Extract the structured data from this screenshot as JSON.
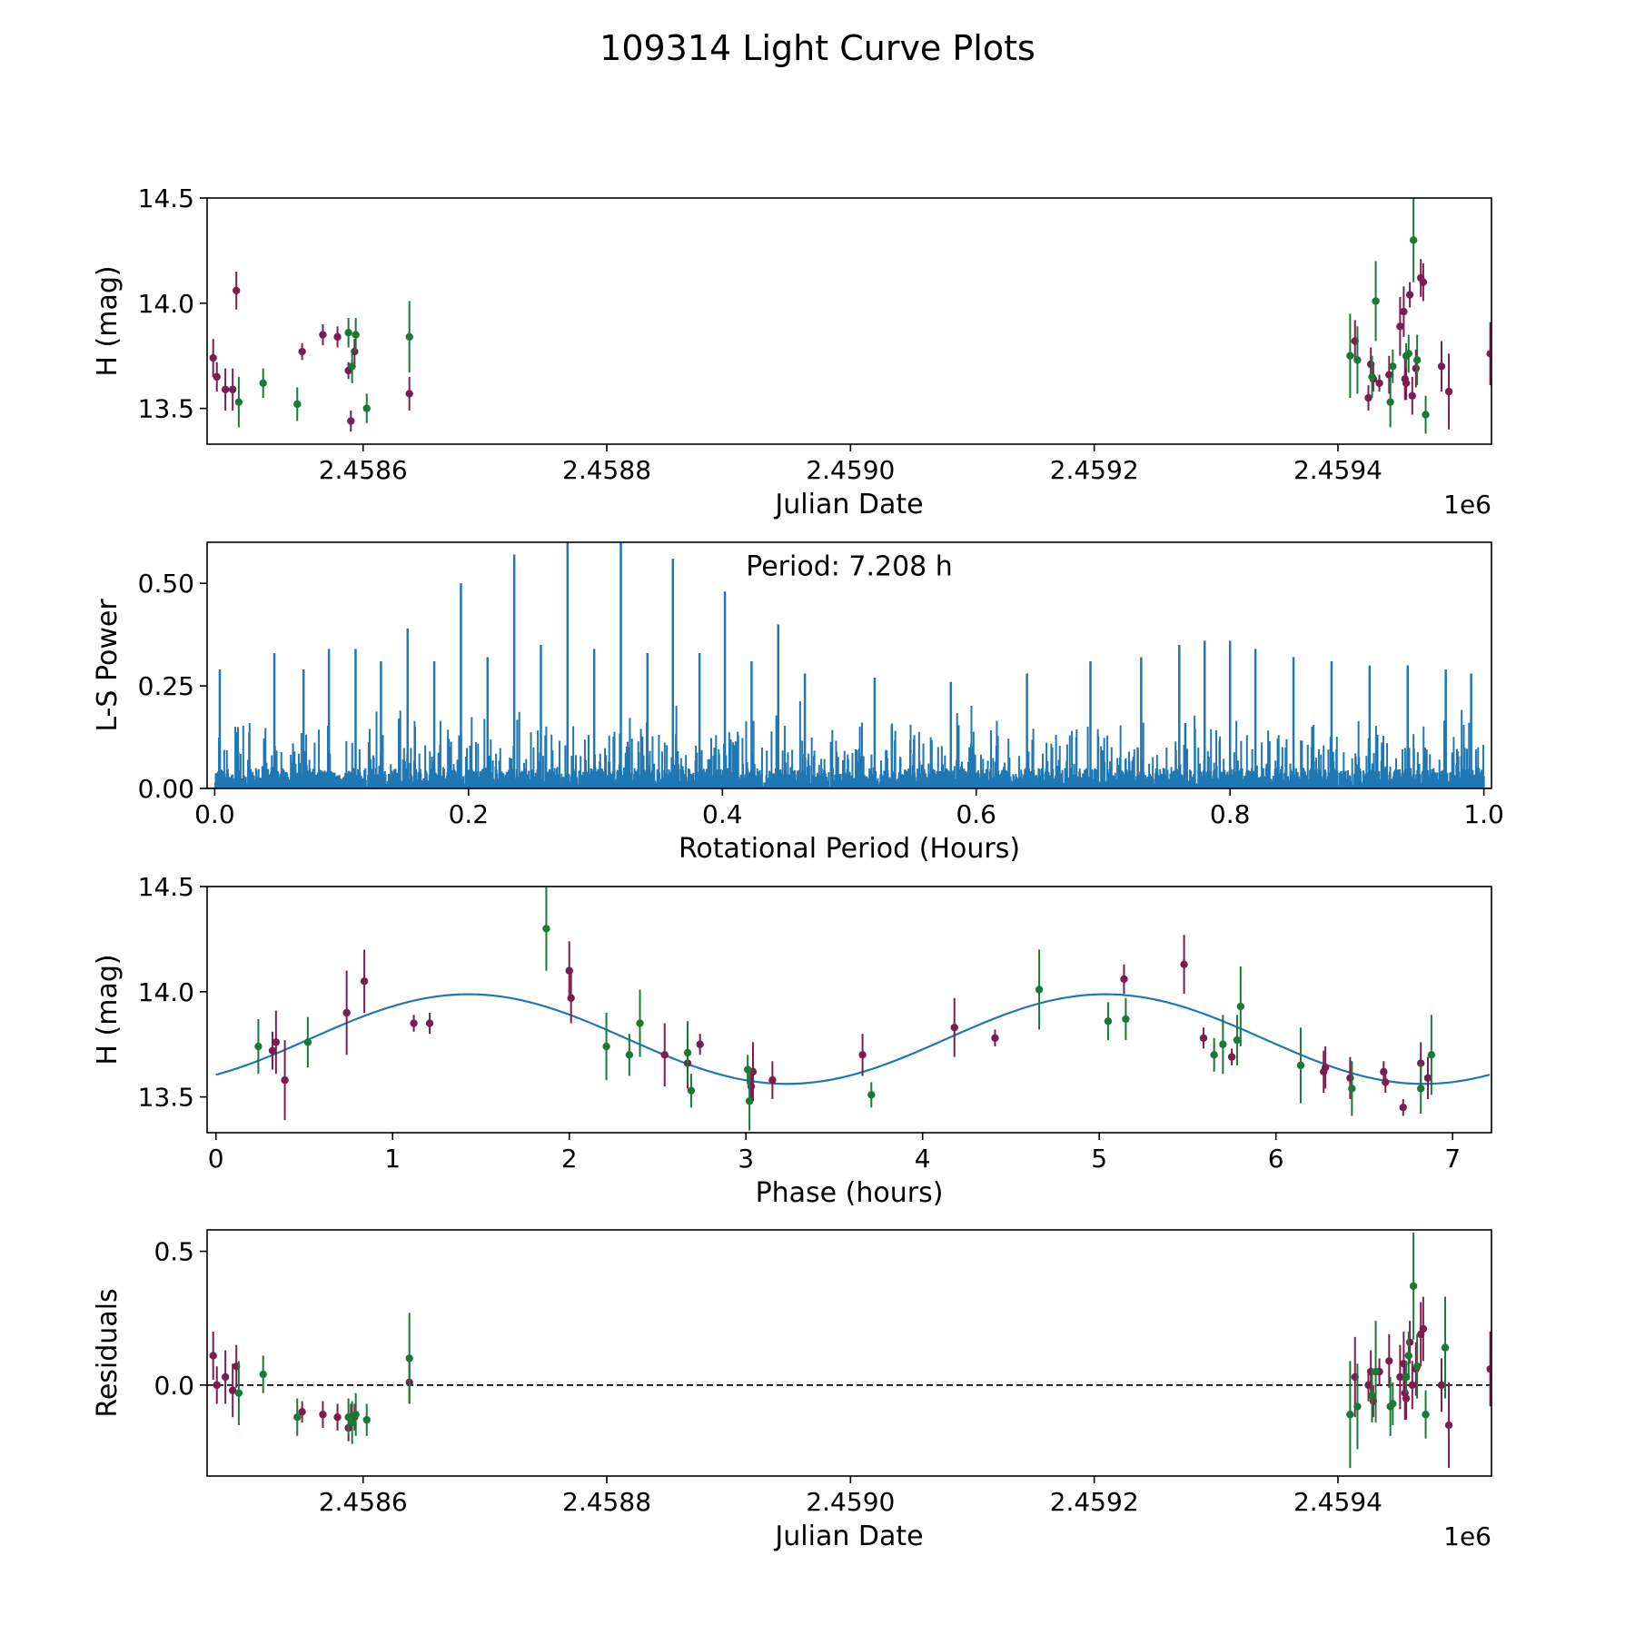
{
  "figure": {
    "title": "109314 Light Curve Plots"
  },
  "colors": {
    "purple": "#7b1e4f",
    "green": "#1a7a35",
    "blue": "#1f77b4",
    "axis": "#000000"
  },
  "chart_data": [
    {
      "type": "scatter",
      "title": "",
      "xlabel": "Julian Date",
      "ylabel": "H (mag)",
      "offset_label": "1e6",
      "xlim": [
        2458472,
        2459526
      ],
      "ylim": [
        13.33,
        14.5
      ],
      "xticks": [
        2458600,
        2458800,
        2459000,
        2459200,
        2459400
      ],
      "xtick_labels": [
        "2.4586",
        "2.4588",
        "2.4590",
        "2.4592",
        "2.4594"
      ],
      "yticks": [
        13.5,
        14.0,
        14.5
      ],
      "ytick_labels": [
        "13.5",
        "14.0",
        "14.5"
      ],
      "series": [
        {
          "name": "purple",
          "color": "purple",
          "points": [
            [
              2458477,
              13.74,
              0.09
            ],
            [
              2458480,
              13.65,
              0.07
            ],
            [
              2458487,
              13.59,
              0.1
            ],
            [
              2458493,
              13.59,
              0.1
            ],
            [
              2458496,
              14.06,
              0.09
            ],
            [
              2458550,
              13.77,
              0.04
            ],
            [
              2458567,
              13.85,
              0.05
            ],
            [
              2458579,
              13.84,
              0.05
            ],
            [
              2458588,
              13.68,
              0.04
            ],
            [
              2458590,
              13.44,
              0.05
            ],
            [
              2458593,
              13.77,
              0.06
            ],
            [
              2458638,
              13.57,
              0.08
            ],
            [
              2459414,
              13.82,
              0.1
            ],
            [
              2459425,
              13.55,
              0.06
            ],
            [
              2459427,
              13.71,
              0.08
            ],
            [
              2459429,
              13.64,
              0.06
            ],
            [
              2459434,
              13.62,
              0.04
            ],
            [
              2459442,
              13.66,
              0.09
            ],
            [
              2459451,
              13.89,
              0.14
            ],
            [
              2459454,
              13.96,
              0.12
            ],
            [
              2459455,
              13.64,
              0.1
            ],
            [
              2459456,
              13.62,
              0.08
            ],
            [
              2459459,
              14.04,
              0.06
            ],
            [
              2459461,
              13.56,
              0.09
            ],
            [
              2459464,
              13.69,
              0.09
            ],
            [
              2459468,
              14.12,
              0.09
            ],
            [
              2459470,
              14.1,
              0.09
            ],
            [
              2459485,
              13.7,
              0.12
            ],
            [
              2459491,
              13.58,
              0.18
            ],
            [
              2459525,
              13.76,
              0.15
            ]
          ]
        },
        {
          "name": "green",
          "color": "green",
          "points": [
            [
              2458498,
              13.53,
              0.12
            ],
            [
              2458518,
              13.62,
              0.07
            ],
            [
              2458546,
              13.52,
              0.08
            ],
            [
              2458588,
              13.86,
              0.07
            ],
            [
              2458591,
              13.7,
              0.08
            ],
            [
              2458594,
              13.85,
              0.08
            ],
            [
              2458603,
              13.5,
              0.07
            ],
            [
              2458638,
              13.84,
              0.17
            ],
            [
              2459410,
              13.75,
              0.2
            ],
            [
              2459416,
              13.73,
              0.16
            ],
            [
              2459428,
              13.65,
              0.1
            ],
            [
              2459431,
              14.01,
              0.19
            ],
            [
              2459443,
              13.53,
              0.12
            ],
            [
              2459445,
              13.7,
              0.08
            ],
            [
              2459456,
              13.75,
              0.06
            ],
            [
              2459458,
              13.76,
              0.09
            ],
            [
              2459462,
              14.3,
              0.2
            ],
            [
              2459465,
              13.73,
              0.12
            ],
            [
              2459472,
              13.47,
              0.09
            ]
          ]
        }
      ]
    },
    {
      "type": "line",
      "title": "",
      "xlabel": "Rotational Period (Hours)",
      "ylabel": "L-S Power",
      "annotation": "Period: 7.208 h",
      "xlim": [
        -0.006,
        1.006
      ],
      "ylim": [
        0.0,
        0.6
      ],
      "xticks": [
        0.0,
        0.2,
        0.4,
        0.6,
        0.8,
        1.0
      ],
      "xtick_labels": [
        "0.0",
        "0.2",
        "0.4",
        "0.6",
        "0.8",
        "1.0"
      ],
      "yticks": [
        0.0,
        0.25,
        0.5
      ],
      "ytick_labels": [
        "0.00",
        "0.25",
        "0.50"
      ],
      "color": "blue",
      "peaks": [
        [
          0.004,
          0.29
        ],
        [
          0.047,
          0.33
        ],
        [
          0.07,
          0.29
        ],
        [
          0.09,
          0.34
        ],
        [
          0.111,
          0.34
        ],
        [
          0.131,
          0.31
        ],
        [
          0.152,
          0.39
        ],
        [
          0.173,
          0.31
        ],
        [
          0.194,
          0.5
        ],
        [
          0.215,
          0.32
        ],
        [
          0.236,
          0.57
        ],
        [
          0.257,
          0.35
        ],
        [
          0.278,
          0.6
        ],
        [
          0.299,
          0.34
        ],
        [
          0.32,
          0.6
        ],
        [
          0.341,
          0.33
        ],
        [
          0.361,
          0.56
        ],
        [
          0.382,
          0.33
        ],
        [
          0.402,
          0.48
        ],
        [
          0.423,
          0.31
        ],
        [
          0.444,
          0.4
        ],
        [
          0.465,
          0.28
        ],
        [
          0.52,
          0.27
        ],
        [
          0.58,
          0.26
        ],
        [
          0.64,
          0.28
        ],
        [
          0.69,
          0.31
        ],
        [
          0.73,
          0.32
        ],
        [
          0.76,
          0.35
        ],
        [
          0.78,
          0.36
        ],
        [
          0.8,
          0.36
        ],
        [
          0.82,
          0.34
        ],
        [
          0.85,
          0.32
        ],
        [
          0.88,
          0.31
        ],
        [
          0.91,
          0.3
        ],
        [
          0.94,
          0.3
        ],
        [
          0.97,
          0.29
        ],
        [
          0.99,
          0.28
        ]
      ]
    },
    {
      "type": "scatter",
      "title": "",
      "xlabel": "Phase (hours)",
      "ylabel": "H (mag)",
      "xlim": [
        -0.05,
        7.22
      ],
      "ylim": [
        13.33,
        14.5
      ],
      "xticks": [
        0,
        1,
        2,
        3,
        4,
        5,
        6,
        7
      ],
      "xtick_labels": [
        "0",
        "1",
        "2",
        "3",
        "4",
        "5",
        "6",
        "7"
      ],
      "yticks": [
        13.5,
        14.0,
        14.5
      ],
      "ytick_labels": [
        "13.5",
        "14.0",
        "14.5"
      ],
      "fit": {
        "period_hours": 3.604,
        "mean": 13.775,
        "amplitude": 0.213,
        "peak_phase": 1.43,
        "color": "blue"
      },
      "series": [
        {
          "name": "purple",
          "color": "purple",
          "points": [
            [
              0.32,
              13.72,
              0.09
            ],
            [
              0.34,
              13.76,
              0.15
            ],
            [
              0.39,
              13.58,
              0.19
            ],
            [
              0.74,
              13.9,
              0.2
            ],
            [
              0.84,
              14.05,
              0.15
            ],
            [
              1.12,
              13.85,
              0.04
            ],
            [
              1.21,
              13.85,
              0.05
            ],
            [
              2.0,
              14.1,
              0.14
            ],
            [
              2.01,
              13.97,
              0.12
            ],
            [
              2.54,
              13.7,
              0.15
            ],
            [
              2.67,
              13.66,
              0.12
            ],
            [
              2.74,
              13.75,
              0.05
            ],
            [
              3.03,
              13.55,
              0.08
            ],
            [
              3.04,
              13.62,
              0.14
            ],
            [
              3.15,
              13.58,
              0.09
            ],
            [
              3.66,
              13.7,
              0.1
            ],
            [
              4.18,
              13.83,
              0.14
            ],
            [
              4.41,
              13.78,
              0.04
            ],
            [
              5.14,
              14.06,
              0.07
            ],
            [
              5.48,
              14.13,
              0.14
            ],
            [
              5.59,
              13.78,
              0.05
            ],
            [
              5.75,
              13.69,
              0.04
            ],
            [
              6.27,
              13.62,
              0.1
            ],
            [
              6.28,
              13.64,
              0.1
            ],
            [
              6.42,
              13.59,
              0.1
            ],
            [
              6.61,
              13.62,
              0.05
            ],
            [
              6.62,
              13.57,
              0.05
            ],
            [
              6.72,
              13.45,
              0.04
            ],
            [
              6.82,
              13.66,
              0.1
            ],
            [
              6.86,
              13.59,
              0.1
            ]
          ]
        },
        {
          "name": "green",
          "color": "green",
          "points": [
            [
              0.24,
              13.74,
              0.13
            ],
            [
              0.52,
              13.76,
              0.12
            ],
            [
              1.87,
              14.3,
              0.2
            ],
            [
              2.21,
              13.74,
              0.16
            ],
            [
              2.34,
              13.7,
              0.1
            ],
            [
              2.4,
              13.85,
              0.16
            ],
            [
              2.67,
              13.71,
              0.15
            ],
            [
              2.69,
              13.53,
              0.08
            ],
            [
              3.01,
              13.63,
              0.07
            ],
            [
              3.02,
              13.48,
              0.14
            ],
            [
              3.71,
              13.51,
              0.06
            ],
            [
              4.66,
              14.01,
              0.19
            ],
            [
              5.05,
              13.86,
              0.09
            ],
            [
              5.15,
              13.87,
              0.1
            ],
            [
              5.65,
              13.7,
              0.08
            ],
            [
              5.7,
              13.75,
              0.14
            ],
            [
              5.78,
              13.77,
              0.12
            ],
            [
              5.8,
              13.93,
              0.19
            ],
            [
              6.14,
              13.65,
              0.18
            ],
            [
              6.43,
              13.54,
              0.13
            ],
            [
              6.82,
              13.54,
              0.12
            ],
            [
              6.88,
              13.7,
              0.19
            ]
          ]
        }
      ]
    },
    {
      "type": "scatter",
      "title": "",
      "xlabel": "Julian Date",
      "ylabel": "Residuals",
      "offset_label": "1e6",
      "xlim": [
        2458472,
        2459526
      ],
      "ylim": [
        -0.34,
        0.58
      ],
      "xticks": [
        2458600,
        2458800,
        2459000,
        2459200,
        2459400
      ],
      "xtick_labels": [
        "2.4586",
        "2.4588",
        "2.4590",
        "2.4592",
        "2.4594"
      ],
      "yticks": [
        0.0,
        0.5
      ],
      "ytick_labels": [
        "0.0",
        "0.5"
      ],
      "reference_line": 0.0,
      "series": [
        {
          "name": "purple",
          "color": "purple",
          "points": [
            [
              2458477,
              0.11,
              0.09
            ],
            [
              2458480,
              0.0,
              0.07
            ],
            [
              2458487,
              0.03,
              0.1
            ],
            [
              2458493,
              -0.02,
              0.1
            ],
            [
              2458496,
              0.07,
              0.08
            ],
            [
              2458550,
              -0.1,
              0.04
            ],
            [
              2458567,
              -0.11,
              0.05
            ],
            [
              2458579,
              -0.12,
              0.05
            ],
            [
              2458588,
              -0.16,
              0.05
            ],
            [
              2458590,
              -0.12,
              0.05
            ],
            [
              2458593,
              -0.12,
              0.05
            ],
            [
              2458638,
              0.01,
              0.08
            ],
            [
              2459414,
              0.03,
              0.15
            ],
            [
              2459425,
              0.0,
              0.06
            ],
            [
              2459427,
              0.05,
              0.08
            ],
            [
              2459429,
              -0.06,
              0.06
            ],
            [
              2459434,
              0.05,
              0.05
            ],
            [
              2459442,
              0.09,
              0.1
            ],
            [
              2459451,
              0.03,
              0.12
            ],
            [
              2459454,
              0.08,
              0.12
            ],
            [
              2459455,
              -0.03,
              0.1
            ],
            [
              2459456,
              -0.05,
              0.08
            ],
            [
              2459459,
              0.16,
              0.08
            ],
            [
              2459461,
              0.0,
              0.09
            ],
            [
              2459464,
              0.06,
              0.1
            ],
            [
              2459468,
              0.19,
              0.12
            ],
            [
              2459470,
              0.21,
              0.12
            ],
            [
              2459485,
              0.0,
              0.1
            ],
            [
              2459491,
              -0.15,
              0.16
            ],
            [
              2459525,
              0.06,
              0.14
            ]
          ]
        },
        {
          "name": "green",
          "color": "green",
          "points": [
            [
              2458498,
              -0.03,
              0.12
            ],
            [
              2458518,
              0.04,
              0.07
            ],
            [
              2458546,
              -0.12,
              0.07
            ],
            [
              2458588,
              -0.12,
              0.07
            ],
            [
              2458591,
              -0.14,
              0.08
            ],
            [
              2458594,
              -0.11,
              0.08
            ],
            [
              2458603,
              -0.13,
              0.06
            ],
            [
              2458638,
              0.1,
              0.17
            ],
            [
              2459410,
              -0.11,
              0.2
            ],
            [
              2459416,
              -0.08,
              0.16
            ],
            [
              2459428,
              -0.04,
              0.1
            ],
            [
              2459431,
              0.05,
              0.19
            ],
            [
              2459443,
              -0.08,
              0.11
            ],
            [
              2459445,
              -0.07,
              0.08
            ],
            [
              2459456,
              0.03,
              0.06
            ],
            [
              2459458,
              0.11,
              0.09
            ],
            [
              2459462,
              0.37,
              0.2
            ],
            [
              2459465,
              0.07,
              0.12
            ],
            [
              2459472,
              -0.11,
              0.09
            ],
            [
              2459488,
              0.14,
              0.19
            ]
          ]
        }
      ]
    }
  ]
}
